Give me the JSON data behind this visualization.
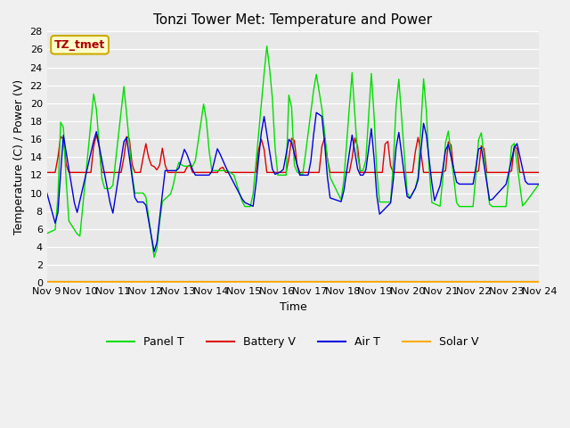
{
  "title": "Tonzi Tower Met: Temperature and Power",
  "xlabel": "Time",
  "ylabel": "Temperature (C) / Power (V)",
  "ylim": [
    0,
    28
  ],
  "yticks": [
    0,
    2,
    4,
    6,
    8,
    10,
    12,
    14,
    16,
    18,
    20,
    22,
    24,
    26,
    28
  ],
  "x_tick_labels": [
    "Nov 9",
    "Nov 10",
    "Nov 11",
    "Nov 12",
    "Nov 13",
    "Nov 14",
    "Nov 15",
    "Nov 16",
    "Nov 17",
    "Nov 18",
    "Nov 19",
    "Nov 20",
    "Nov 21",
    "Nov 22",
    "Nov 23",
    "Nov 24"
  ],
  "colors": {
    "panel_t": "#00dd00",
    "battery_v": "#dd0000",
    "air_t": "#0000dd",
    "solar_v": "#ffaa00"
  },
  "fig_bg": "#f0f0f0",
  "plot_bg": "#e8e8e8",
  "annotation_text": "TZ_tmet",
  "annotation_color": "#aa0000",
  "annotation_bg": "#ffffcc",
  "annotation_border": "#ccaa00",
  "legend_labels": [
    "Panel T",
    "Battery V",
    "Air T",
    "Solar V"
  ]
}
